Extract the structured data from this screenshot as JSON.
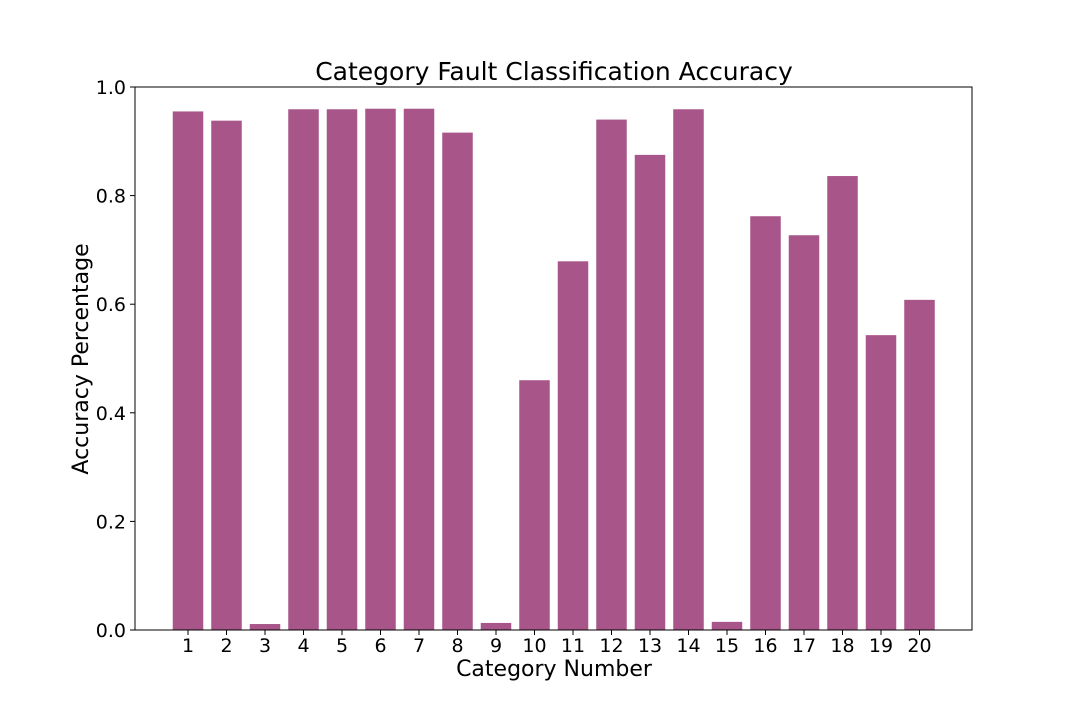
{
  "chart_data": {
    "type": "bar",
    "title": "Category Fault Classification Accuracy",
    "xlabel": "Category Number",
    "ylabel": "Accuracy Percentage",
    "categories": [
      "1",
      "2",
      "3",
      "4",
      "5",
      "6",
      "7",
      "8",
      "9",
      "10",
      "11",
      "12",
      "13",
      "14",
      "15",
      "16",
      "17",
      "18",
      "19",
      "20"
    ],
    "values": [
      0.955,
      0.938,
      0.011,
      0.959,
      0.959,
      0.96,
      0.96,
      0.916,
      0.013,
      0.46,
      0.679,
      0.94,
      0.875,
      0.959,
      0.015,
      0.762,
      0.727,
      0.836,
      0.543,
      0.608
    ],
    "ylim": [
      0,
      1.0
    ],
    "yticks": [
      "0.0",
      "0.2",
      "0.4",
      "0.6",
      "0.8",
      "1.0"
    ],
    "grid": false,
    "bar_color": "#a8558a"
  }
}
